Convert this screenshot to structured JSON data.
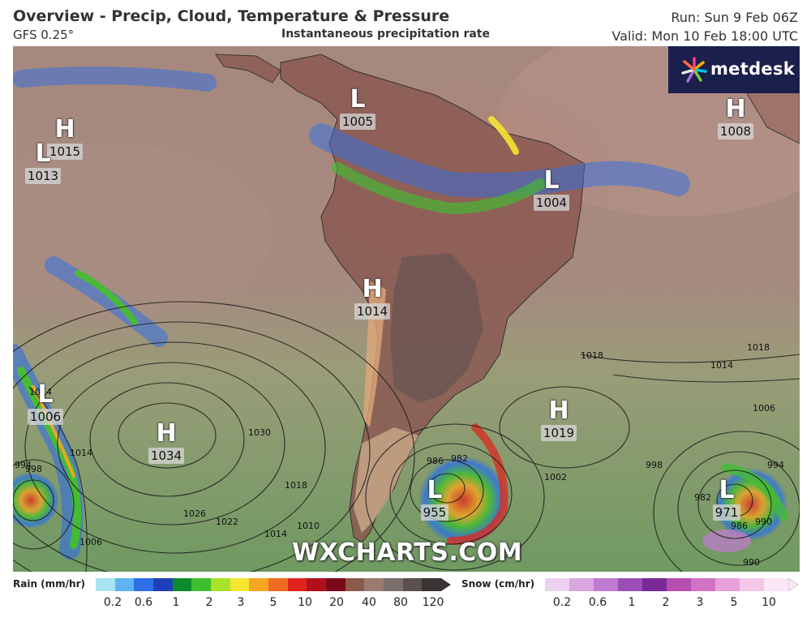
{
  "header": {
    "title": "Overview - Precip, Cloud, Temperature & Pressure",
    "model": "GFS 0.25°",
    "subtitle": "Instantaneous precipitation rate",
    "run": "Run: Sun 9 Feb 06Z",
    "valid": "Valid: Mon 10 Feb 18:00 UTC"
  },
  "logo": {
    "text": "metdesk"
  },
  "watermark": "WXCHARTS.COM",
  "pressure_centers": [
    {
      "type": "H",
      "value": "1015"
    },
    {
      "type": "L",
      "value": "1013"
    },
    {
      "type": "L",
      "value": "1005"
    },
    {
      "type": "H",
      "value": "1008"
    },
    {
      "type": "L",
      "value": "1004"
    },
    {
      "type": "H",
      "value": "1014"
    },
    {
      "type": "L",
      "value": "1006"
    },
    {
      "type": "H",
      "value": "1034"
    },
    {
      "type": "H",
      "value": "1019"
    },
    {
      "type": "L",
      "value": "955"
    },
    {
      "type": "L",
      "value": "971"
    }
  ],
  "isobar_labels": [
    "1018",
    "1014",
    "1006",
    "1030",
    "1026",
    "1022",
    "1018",
    "1014",
    "1010",
    "994",
    "998",
    "1014",
    "1006",
    "986",
    "982",
    "998",
    "990",
    "982",
    "986",
    "990",
    "994",
    "1002",
    "1018",
    "1014",
    "1014"
  ],
  "legend": {
    "rain": {
      "label": "Rain (mm/hr)",
      "ticks": [
        "0.2",
        "0.6",
        "1",
        "2",
        "3",
        "5",
        "10",
        "20",
        "40",
        "80",
        "120"
      ],
      "colors": [
        "#a8e4f0",
        "#5fb3f5",
        "#2e6fe8",
        "#1f3fb8",
        "#0d8a2c",
        "#3fbf2f",
        "#a8e22a",
        "#f5e530",
        "#f5a623",
        "#f06a21",
        "#e0231c",
        "#b0101a",
        "#7a0a1a",
        "#8a5a4a",
        "#9c7a70",
        "#7a6e6a",
        "#5a504e",
        "#3a3434"
      ]
    },
    "snow": {
      "label": "Snow (cm/hr)",
      "ticks": [
        "0.2",
        "0.6",
        "1",
        "2",
        "3",
        "5",
        "10"
      ],
      "colors": [
        "#ecd2ef",
        "#d9a6e0",
        "#c07ad0",
        "#9c4eb8",
        "#7a2a98",
        "#b64fb0",
        "#d173c4",
        "#e8a0d8",
        "#f3c6ea",
        "#fbe6f6"
      ]
    }
  }
}
